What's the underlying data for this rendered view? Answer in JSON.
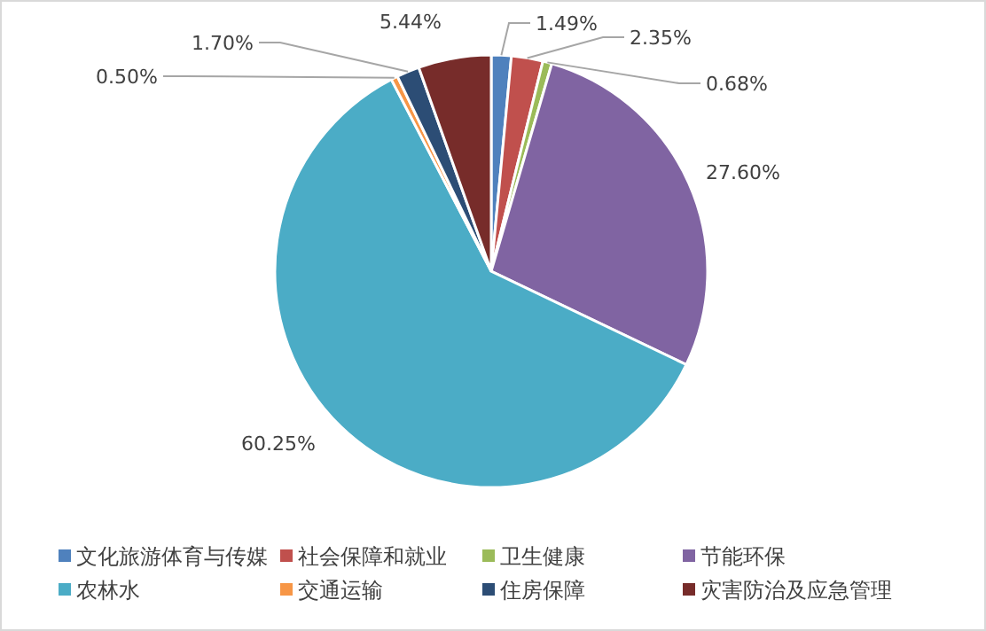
{
  "chart_data": {
    "type": "pie",
    "categories": [
      "文化旅游体育与传媒",
      "社会保障和就业",
      "卫生健康",
      "节能环保",
      "农林水",
      "交通运输",
      "住房保障",
      "灾害防治及应急管理"
    ],
    "values": [
      1.49,
      2.35,
      0.68,
      27.6,
      60.25,
      0.5,
      1.7,
      5.44
    ],
    "value_labels": [
      "1.49%",
      "2.35%",
      "0.68%",
      "27.60%",
      "60.25%",
      "0.50%",
      "1.70%",
      "5.44%"
    ],
    "colors": [
      "#4f81bd",
      "#c0504d",
      "#9bbb59",
      "#8064a2",
      "#4bacc6",
      "#f79646",
      "#2c4d75",
      "#772c2a"
    ],
    "legend": "bottom"
  }
}
